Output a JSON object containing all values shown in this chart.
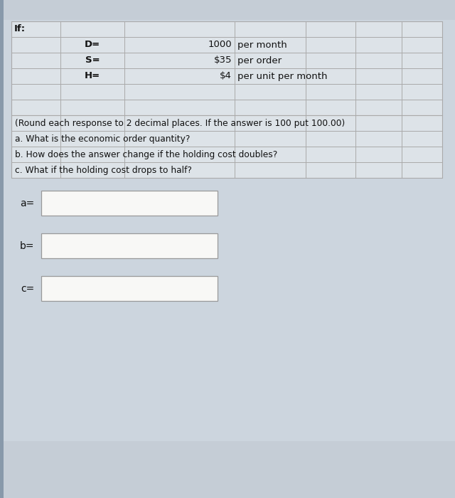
{
  "bg_outer": "#c5cdd6",
  "bg_inner": "#ccd5de",
  "table_bg": "#dde3e8",
  "white": "#f8f8f6",
  "border_color": "#aaaaaa",
  "text_color": "#111111",
  "title_row": "If:",
  "param_rows": [
    {
      "label": "D=",
      "value": "1000",
      "unit": "per month"
    },
    {
      "label": "S=",
      "value": "$35",
      "unit": "per order"
    },
    {
      "label": "H=",
      "value": "$4",
      "unit": "per unit per month"
    }
  ],
  "instructions": "(Round each response to 2 decimal places. If the answer is 100 put 100.00)",
  "question_a": "a. What is the economic order quantity?",
  "question_b": "b. How does the answer change if the holding cost doubles?",
  "question_c": "c. What if the holding cost drops to half?",
  "answer_labels": [
    "a=",
    "b=",
    "c="
  ],
  "fig_width": 6.4,
  "fig_height": 7.0
}
